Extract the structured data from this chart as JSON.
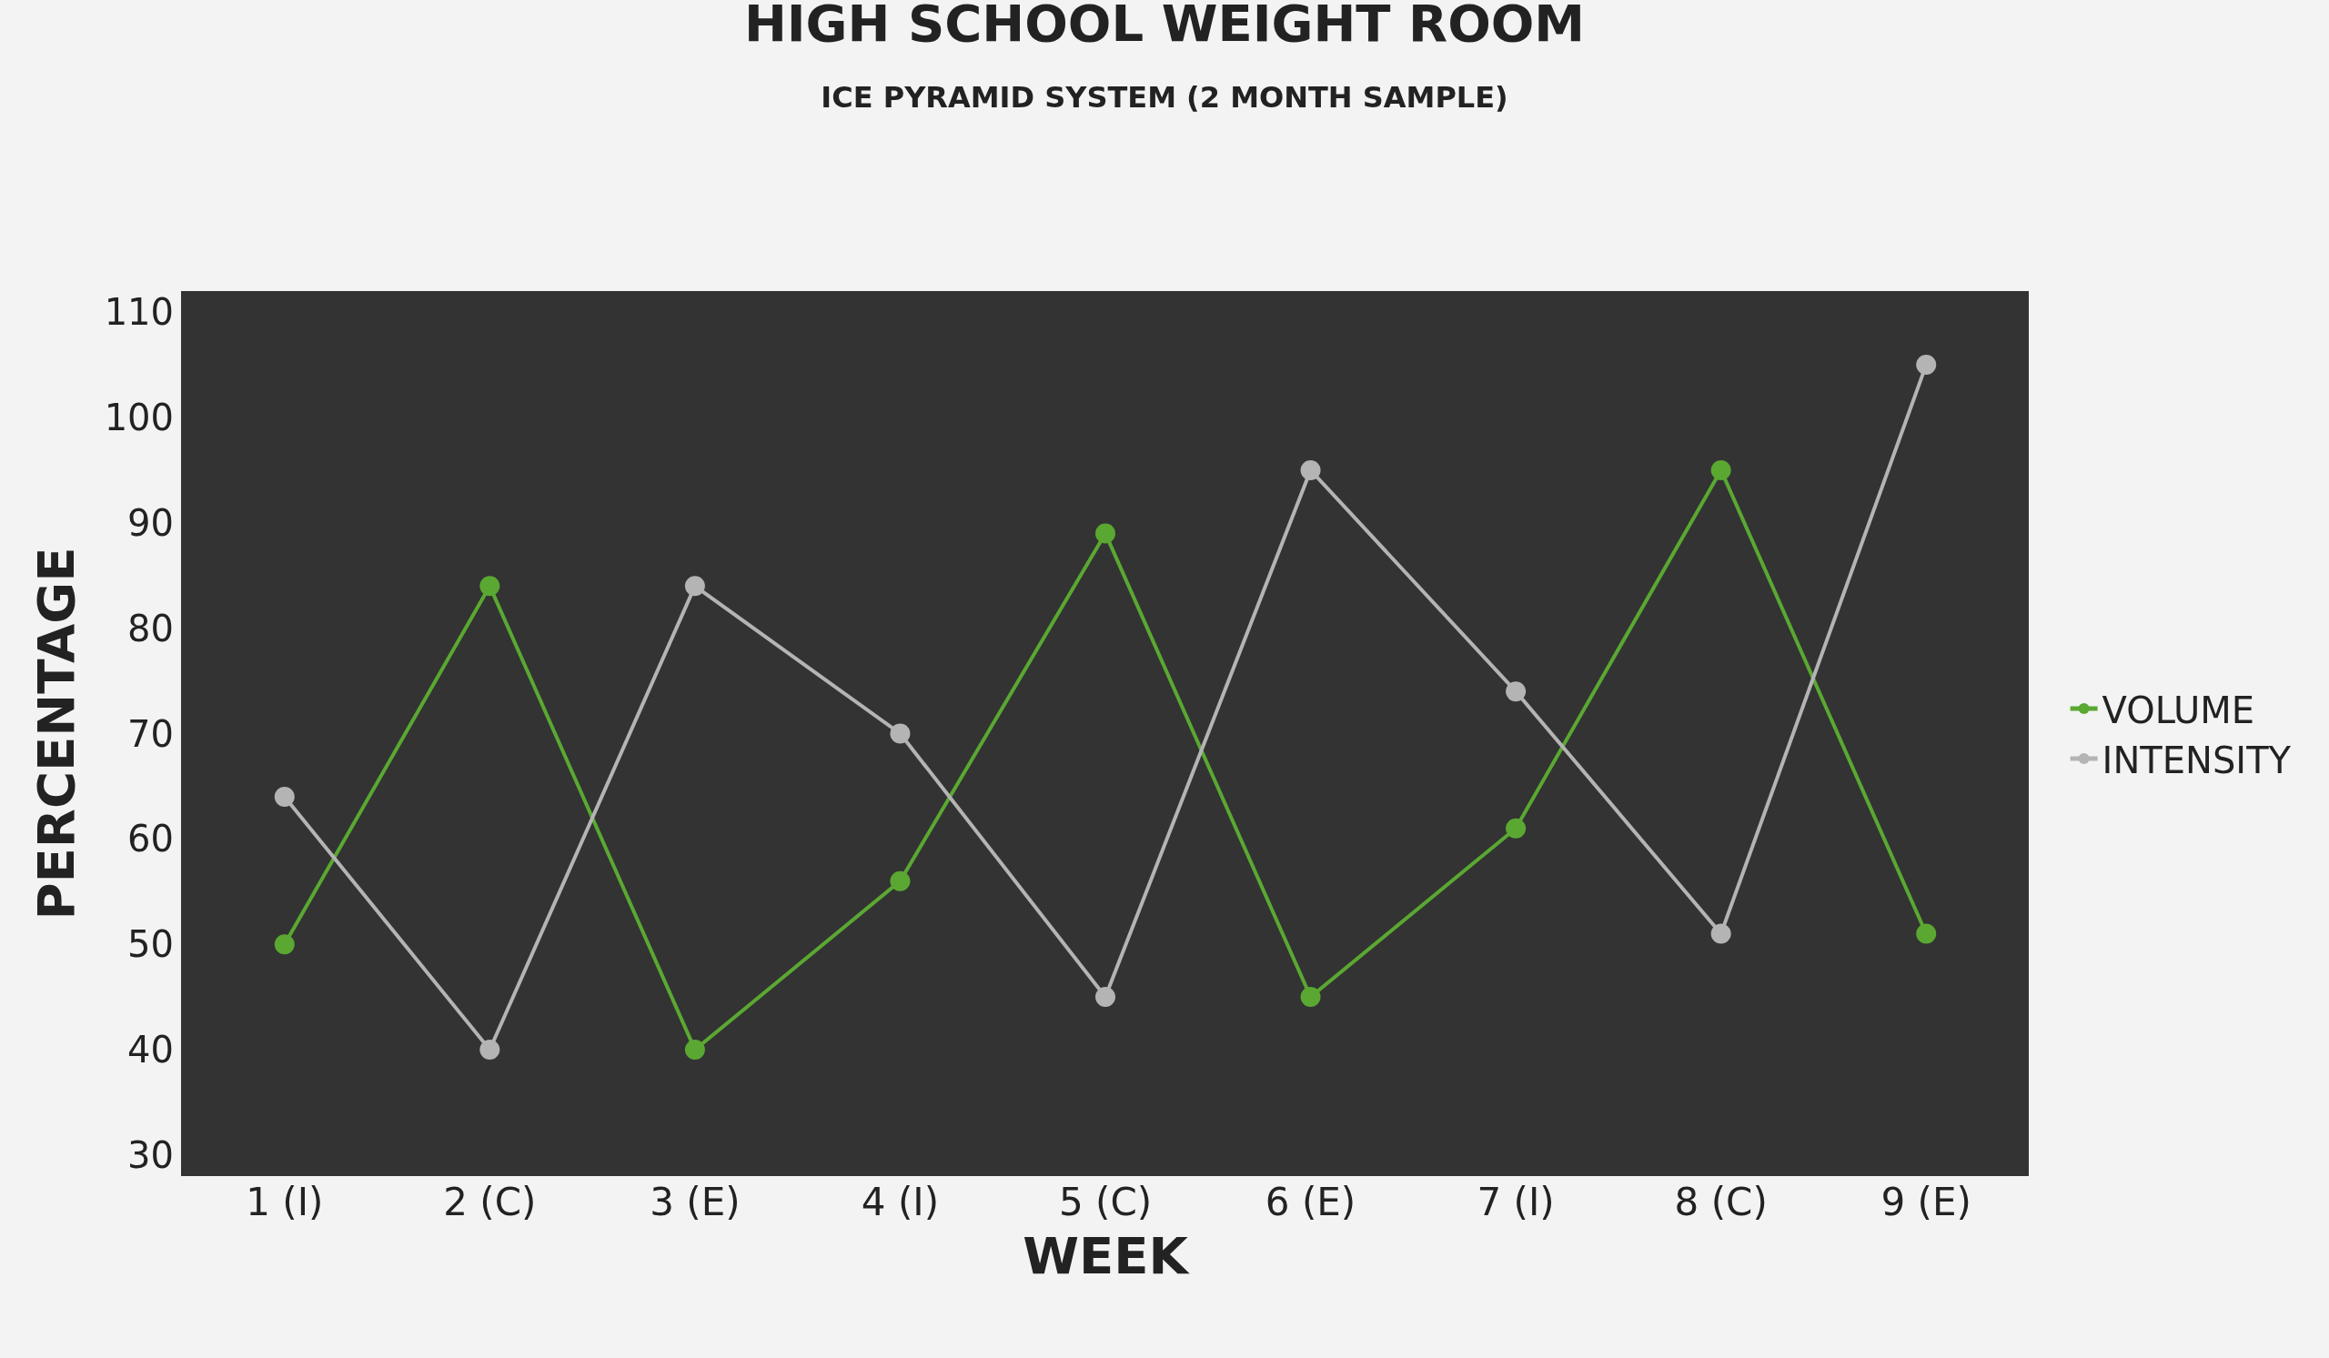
{
  "chart_data": {
    "type": "line",
    "title": "HIGH SCHOOL WEIGHT ROOM",
    "subtitle": "ICE PYRAMID SYSTEM (2 MONTH SAMPLE)",
    "xlabel": "WEEK",
    "ylabel": "PERCENTAGE",
    "categories": [
      "1 (I)",
      "2 (C)",
      "3 (E)",
      "4 (I)",
      "5 (C)",
      "6 (E)",
      "7 (I)",
      "8 (C)",
      "9 (E)"
    ],
    "series": [
      {
        "name": "VOLUME",
        "color": "#5aa832",
        "values": [
          50,
          84,
          40,
          56,
          89,
          45,
          61,
          95,
          51
        ]
      },
      {
        "name": "INTENSITY",
        "color": "#b4b4b4",
        "values": [
          64,
          40,
          84,
          70,
          45,
          95,
          74,
          51,
          105
        ]
      }
    ],
    "ylim": [
      28,
      112
    ],
    "yticks": [
      30,
      40,
      50,
      60,
      70,
      80,
      90,
      100,
      110
    ],
    "grid": false,
    "legend": "right",
    "marker": "circle",
    "line_style": "solid"
  }
}
